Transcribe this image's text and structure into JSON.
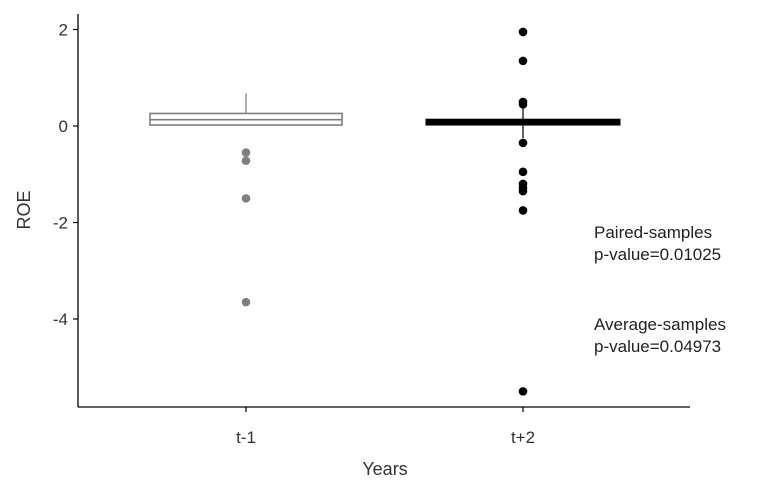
{
  "chart_data": {
    "type": "box",
    "xlabel": "Years",
    "ylabel": "ROE",
    "ylim": [
      -5.6,
      2.2
    ],
    "yticks": [
      "2",
      "0",
      "-2",
      "-4"
    ],
    "grid": false,
    "groups": [
      {
        "category": "t-1",
        "median": 0.13,
        "q1": 0.02,
        "q3": 0.26,
        "whisker_low": 0.02,
        "whisker_high": 0.68,
        "outliers": [
          -0.55,
          -0.72,
          -1.5,
          -3.65
        ],
        "color": "#7f7f7f"
      },
      {
        "category": "t+2",
        "median": 0.08,
        "q1": 0.04,
        "q3": 0.12,
        "whisker_low": -0.25,
        "whisker_high": 0.42,
        "outliers": [
          1.95,
          1.35,
          0.5,
          0.45,
          -0.35,
          -0.95,
          -1.2,
          -1.28,
          -1.35,
          -1.75,
          -5.5
        ],
        "color": "#000000"
      }
    ]
  },
  "annotations": {
    "paired_title": "Paired-samples",
    "paired_value": "p-value=0.01025",
    "average_title": "Average-samples",
    "average_value": "p-value=0.04973"
  }
}
